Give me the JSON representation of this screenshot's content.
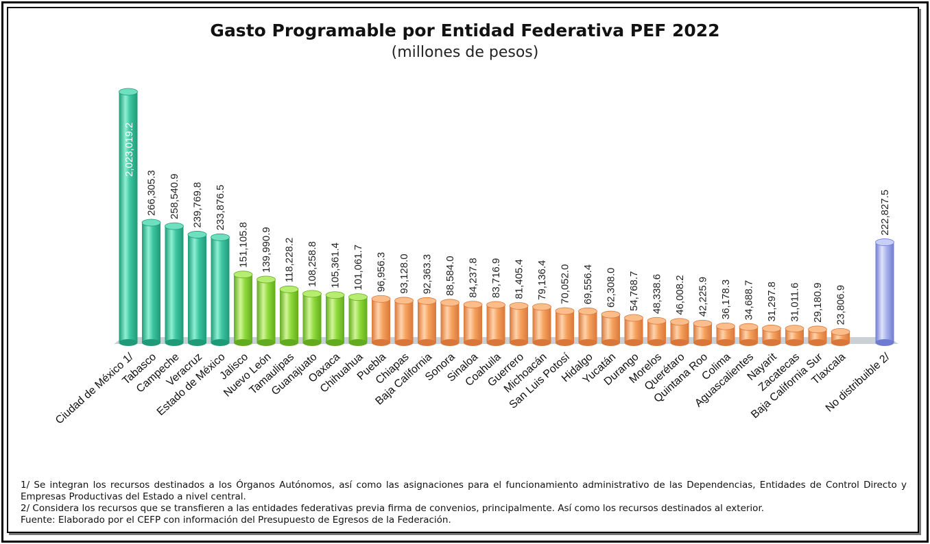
{
  "title": "Gasto Programable por Entidad Federativa PEF 2022",
  "subtitle": "(millones de pesos)",
  "colors": {
    "teal": "#3cc4a0",
    "green": "#8ed93a",
    "orange": "#f5a15c",
    "blue": "#a9b3ee"
  },
  "chart_data": {
    "type": "bar",
    "categories": [
      "Ciudad de México 1/",
      "Tabasco",
      "Campeche",
      "Veracruz",
      "Estado de México",
      "Jalisco",
      "Nuevo León",
      "Tamaulipas",
      "Guanajuato",
      "Oaxaca",
      "Chihuahua",
      "Puebla",
      "Chiapas",
      "Baja California",
      "Sonora",
      "Sinaloa",
      "Coahuila",
      "Guerrero",
      "Michoacán",
      "San Luis Potosí",
      "Hidalgo",
      "Yucatán",
      "Durango",
      "Morelos",
      "Querétaro",
      "Quintana Roo",
      "Colima",
      "Aguascalientes",
      "Nayarit",
      "Zacatecas",
      "Baja California Sur",
      "Tlaxcala",
      "No distribuible 2/"
    ],
    "values": [
      2023019.2,
      266305.3,
      258540.9,
      239769.8,
      233876.5,
      151105.8,
      139990.9,
      118228.2,
      108258.8,
      105361.4,
      101061.7,
      96956.3,
      93128.0,
      92363.3,
      88584.0,
      84237.8,
      83716.9,
      81405.4,
      79136.4,
      70052.0,
      69556.4,
      62308.0,
      54768.7,
      48338.6,
      46008.2,
      42225.9,
      36178.3,
      34688.7,
      31297.8,
      31011.6,
      29180.9,
      23806.9,
      222827.5
    ],
    "value_labels": [
      "2,023,019.2",
      "266,305.3",
      "258,540.9",
      "239,769.8",
      "233,876.5",
      "151,105.8",
      "139,990.9",
      "118,228.2",
      "108,258.8",
      "105,361.4",
      "101,061.7",
      "96,956.3",
      "93,128.0",
      "92,363.3",
      "88,584.0",
      "84,237.8",
      "83,716.9",
      "81,405.4",
      "79,136.4",
      "70,052.0",
      "69,556.4",
      "62,308.0",
      "54,768.7",
      "48,338.6",
      "46,008.2",
      "42,225.9",
      "36,178.3",
      "34,688.7",
      "31,297.8",
      "31,011.6",
      "29,180.9",
      "23,806.9",
      "222,827.5"
    ],
    "color_groups": [
      "teal",
      "teal",
      "teal",
      "teal",
      "teal",
      "green",
      "green",
      "green",
      "green",
      "green",
      "green",
      "orange",
      "orange",
      "orange",
      "orange",
      "orange",
      "orange",
      "orange",
      "orange",
      "orange",
      "orange",
      "orange",
      "orange",
      "orange",
      "orange",
      "orange",
      "orange",
      "orange",
      "orange",
      "orange",
      "orange",
      "orange",
      "blue"
    ],
    "broken_axis": true,
    "grid": false,
    "legend": "none"
  },
  "notes": [
    "1/ Se integran los recursos destinados a los Órganos Autónomos, así como las asignaciones para el funcionamiento administrativo de las Dependencias, Entidades de Control Directo y Empresas Productivas del Estado a nivel central.",
    "2/  Considera los recursos que se transfieren a las entidades federativas previa firma de convenios, principalmente. Así como los recursos destinados al exterior.",
    "Fuente: Elaborado por el CEFP con información del Presupuesto de Egresos de la Federación."
  ]
}
